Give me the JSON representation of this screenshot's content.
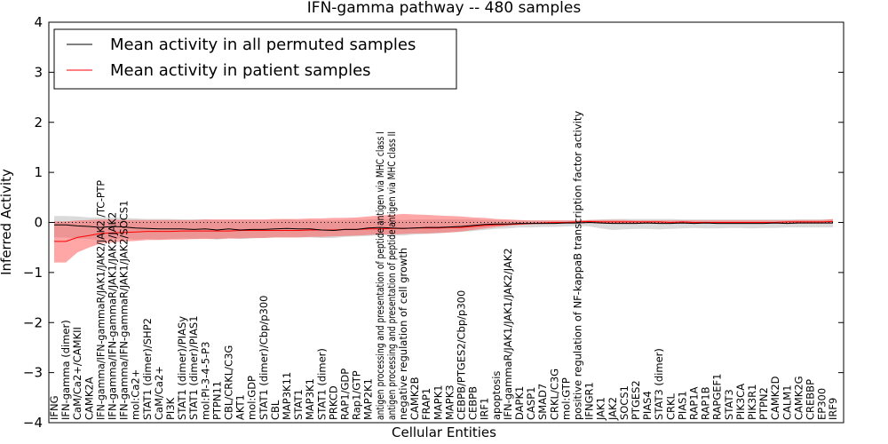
{
  "chart_data": {
    "type": "line",
    "title": "IFN-gamma pathway -- 480 samples",
    "xlabel": "Cellular Entities",
    "ylabel": "Inferred Activity",
    "ylim": [
      -4,
      4
    ],
    "yticks": [
      "4",
      "3",
      "2",
      "1",
      "0",
      "−1",
      "−2",
      "−3",
      "−4"
    ],
    "ytick_values": [
      4,
      3,
      2,
      1,
      0,
      -1,
      -2,
      -3,
      -4
    ],
    "legend_position": "top-left",
    "series": [
      {
        "name": "Mean activity in all permuted samples",
        "color": "#000000",
        "band_color": "#bbbbbb"
      },
      {
        "name": "Mean activity in patient samples",
        "color": "#ff0000",
        "band_color": "#ff4d4d"
      }
    ],
    "categories": [
      "IFNG",
      "IFN-gamma (dimer)",
      "CaM/Ca2+/CAMKII",
      "CAMK2A",
      "IFN-gamma/IFN-gammaR/JAK1/JAK2/JAK2 /TC-PTP",
      "IFN-gamma/IFN-gammaR/JAK1/JAK2/JAK2",
      "IFN-gamma/IFN-gammaR/JAK1/JAK2/SOCS1",
      "mol:Ca2+",
      "STAT1 (dimer)/SHP2",
      "CaM/Ca2+",
      "PI3K",
      "STAT1 (dimer)/PIASy",
      "STAT1 (dimer)/PIAS1",
      "mol:PI-3-4-5-P3",
      "PTPN11",
      "CBL/CRKL/C3G",
      "AKT1",
      "mol:GDP",
      "STAT1 (dimer)/Cbp/p300",
      "CBL",
      "MAP3K11",
      "STAT1",
      "MAP3K1",
      "STAT1 (dimer)",
      "PRKCD",
      "RAP1/GDP",
      "Rap1/GTP",
      "MAP2K1",
      "antigen processing and presentation of peptide antigen via MHC class I",
      "antigen processing and presentation of peptide antigen via MHC class II",
      "negative regulation of cell growth",
      "CAMK2B",
      "FRAP1",
      "MAPK1",
      "MAPK3",
      "CEBPB/PTGES2/Cbp/p300",
      "CEBPB",
      "IRF1",
      "apoptosis",
      "IFN-gammaR/JAK1/JAK1/JAK2/JAK2",
      "DAPK1",
      "CASP1",
      "SMAD7",
      "CRKL/C3G",
      "mol:GTP",
      "positive regulation of NF-kappaB transcription factor activity",
      "IFNGR1",
      "JAK1",
      "JAK2",
      "SOCS1",
      "PTGES2",
      "PIAS4",
      "STAT3 (dimer)",
      "CRKL",
      "PIAS1",
      "RAP1A",
      "RAP1B",
      "RAPGEF1",
      "STAT3",
      "PIK3CA",
      "PIK3R1",
      "PTPN2",
      "CAMK2D",
      "CALM1",
      "CAMK2G",
      "CREBBP",
      "EP300",
      "IRF9"
    ],
    "label_clip": {
      "IFN-gamma/IFN-gammaR/JAK1/JAK2/JAK2 /TC-PTP": 270,
      "antigen processing and presentation of peptide antigen via MHC class I": 325,
      "antigen processing and presentation of peptide antigen via MHC class II": 325
    },
    "permuted_mean": [
      -0.05,
      -0.05,
      -0.07,
      -0.08,
      -0.1,
      -0.08,
      -0.09,
      -0.11,
      -0.12,
      -0.13,
      -0.13,
      -0.13,
      -0.14,
      -0.13,
      -0.15,
      -0.13,
      -0.15,
      -0.14,
      -0.14,
      -0.13,
      -0.12,
      -0.13,
      -0.13,
      -0.15,
      -0.16,
      -0.14,
      -0.14,
      -0.11,
      -0.1,
      -0.11,
      -0.12,
      -0.11,
      -0.1,
      -0.1,
      -0.09,
      -0.08,
      -0.06,
      -0.04,
      -0.03,
      -0.03,
      -0.02,
      -0.02,
      -0.02,
      -0.02,
      -0.01,
      -0.01,
      0,
      -0.01,
      -0.02,
      -0.02,
      -0.02,
      -0.01,
      -0.02,
      -0.02,
      -0.01,
      -0.02,
      -0.01,
      -0.02,
      -0.02,
      -0.02,
      -0.02,
      -0.02,
      -0.01,
      -0.02,
      -0.01,
      -0.01,
      -0.01,
      -0.01
    ],
    "permuted_lower": [
      -0.3,
      -0.3,
      -0.32,
      -0.33,
      -0.35,
      -0.33,
      -0.32,
      -0.34,
      -0.33,
      -0.34,
      -0.33,
      -0.32,
      -0.33,
      -0.32,
      -0.34,
      -0.32,
      -0.33,
      -0.32,
      -0.31,
      -0.3,
      -0.3,
      -0.3,
      -0.3,
      -0.31,
      -0.31,
      -0.29,
      -0.28,
      -0.27,
      -0.25,
      -0.26,
      -0.26,
      -0.24,
      -0.23,
      -0.22,
      -0.2,
      -0.19,
      -0.17,
      -0.15,
      -0.13,
      -0.12,
      -0.1,
      -0.1,
      -0.09,
      -0.09,
      -0.08,
      -0.07,
      -0.08,
      -0.12,
      -0.15,
      -0.14,
      -0.13,
      -0.13,
      -0.14,
      -0.13,
      -0.12,
      -0.11,
      -0.12,
      -0.12,
      -0.11,
      -0.11,
      -0.12,
      -0.11,
      -0.11,
      -0.1,
      -0.1,
      -0.1,
      -0.1,
      -0.1
    ],
    "permuted_upper": [
      0.13,
      0.13,
      0.12,
      0.1,
      0.1,
      0.1,
      0.09,
      0.08,
      0.07,
      0.07,
      0.07,
      0.06,
      0.06,
      0.06,
      0.05,
      0.05,
      0.05,
      0.05,
      0.05,
      0.05,
      0.06,
      0.05,
      0.05,
      0.04,
      0.04,
      0.05,
      0.05,
      0.06,
      0.07,
      0.06,
      0.05,
      0.06,
      0.06,
      0.06,
      0.06,
      0.06,
      0.06,
      0.05,
      0.05,
      0.04,
      0.04,
      0.04,
      0.04,
      0.04,
      0.04,
      0.04,
      0.05,
      0.06,
      0.07,
      0.07,
      0.07,
      0.07,
      0.07,
      0.07,
      0.06,
      0.06,
      0.06,
      0.06,
      0.06,
      0.06,
      0.06,
      0.06,
      0.06,
      0.06,
      0.06,
      0.06,
      0.06,
      0.06
    ],
    "patient_mean": [
      -0.38,
      -0.38,
      -0.3,
      -0.26,
      -0.22,
      -0.21,
      -0.2,
      -0.19,
      -0.18,
      -0.18,
      -0.18,
      -0.17,
      -0.17,
      -0.17,
      -0.17,
      -0.17,
      -0.16,
      -0.16,
      -0.16,
      -0.16,
      -0.16,
      -0.16,
      -0.15,
      -0.15,
      -0.15,
      -0.14,
      -0.14,
      -0.13,
      -0.13,
      -0.12,
      -0.12,
      -0.11,
      -0.11,
      -0.11,
      -0.1,
      -0.1,
      -0.08,
      -0.06,
      -0.05,
      -0.04,
      -0.03,
      -0.02,
      -0.01,
      0,
      0,
      0.01,
      0.02,
      0.01,
      0.01,
      0.01,
      0.01,
      0.01,
      0.01,
      0,
      0.01,
      0,
      0,
      0,
      0,
      0,
      0,
      0,
      0,
      0.01,
      0.01,
      0.01,
      0.01,
      0.02
    ],
    "patient_lower": [
      -0.8,
      -0.8,
      -0.6,
      -0.5,
      -0.42,
      -0.4,
      -0.38,
      -0.37,
      -0.35,
      -0.35,
      -0.34,
      -0.34,
      -0.33,
      -0.33,
      -0.33,
      -0.32,
      -0.32,
      -0.31,
      -0.31,
      -0.3,
      -0.3,
      -0.3,
      -0.29,
      -0.29,
      -0.28,
      -0.27,
      -0.26,
      -0.25,
      -0.24,
      -0.24,
      -0.23,
      -0.22,
      -0.22,
      -0.21,
      -0.2,
      -0.18,
      -0.15,
      -0.12,
      -0.09,
      -0.07,
      -0.05,
      -0.04,
      -0.03,
      -0.02,
      -0.02,
      -0.02,
      -0.01,
      -0.02,
      -0.02,
      -0.02,
      -0.02,
      -0.02,
      -0.02,
      -0.02,
      -0.02,
      -0.02,
      -0.02,
      -0.02,
      -0.02,
      -0.02,
      -0.02,
      -0.02,
      -0.02,
      -0.02,
      -0.02,
      -0.02,
      -0.02,
      -0.02
    ],
    "patient_upper": [
      0.02,
      0.02,
      0.04,
      0.05,
      0.06,
      0.06,
      0.05,
      0.05,
      0.05,
      0.05,
      0.05,
      0.05,
      0.05,
      0.06,
      0.06,
      0.06,
      0.06,
      0.06,
      0.06,
      0.07,
      0.07,
      0.07,
      0.08,
      0.08,
      0.09,
      0.09,
      0.1,
      0.12,
      0.14,
      0.15,
      0.17,
      0.16,
      0.15,
      0.14,
      0.13,
      0.12,
      0.1,
      0.09,
      0.07,
      0.06,
      0.05,
      0.04,
      0.04,
      0.04,
      0.04,
      0.04,
      0.05,
      0.05,
      0.05,
      0.05,
      0.04,
      0.04,
      0.04,
      0.04,
      0.04,
      0.04,
      0.04,
      0.04,
      0.04,
      0.04,
      0.04,
      0.04,
      0.04,
      0.04,
      0.05,
      0.05,
      0.05,
      0.07
    ]
  }
}
